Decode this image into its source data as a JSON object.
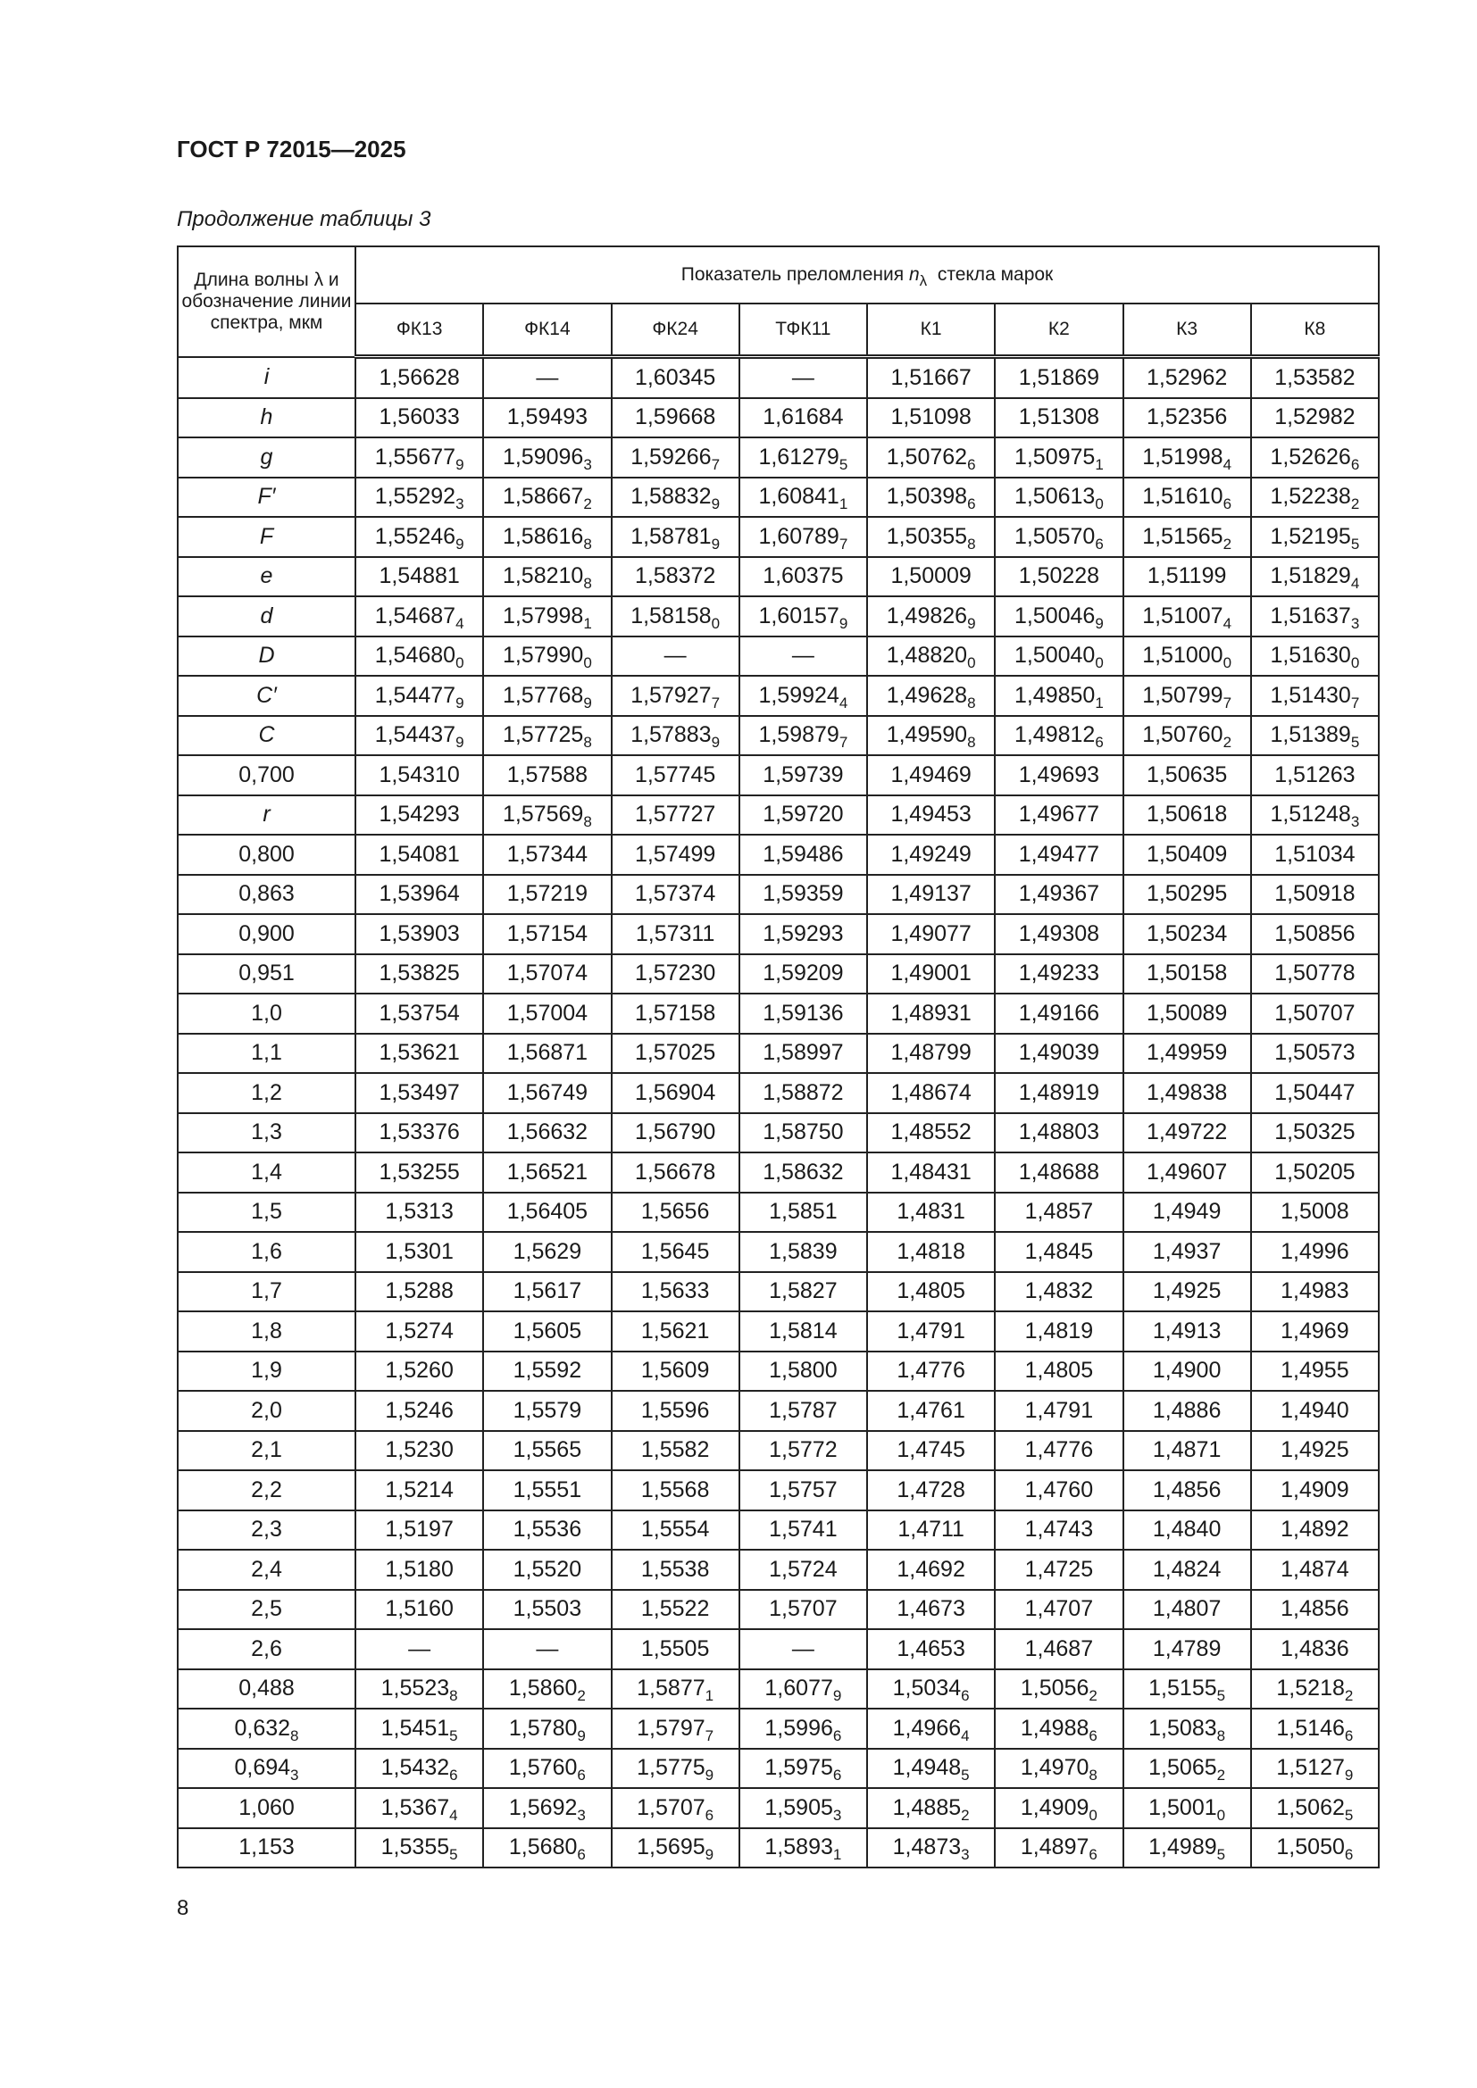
{
  "header": {
    "title": "ГОСТ Р 72015—2025"
  },
  "caption": "Продолжение таблицы 3",
  "table": {
    "first_col_header": "Длина волны λ и обозначение линии спектра, мкм",
    "group_header_prefix": "Показатель преломления ",
    "group_header_symbol": "n",
    "group_header_sub": "λ",
    "group_header_suffix": "  стекла марок",
    "columns": [
      "ФК13",
      "ФК14",
      "ФК24",
      "ТФК11",
      "К1",
      "К2",
      "К3",
      "К8"
    ],
    "rows": [
      {
        "label": "i",
        "italic": true,
        "cells": [
          "1,56628",
          "—",
          "1,60345",
          "—",
          "1,51667",
          "1,51869",
          "1,52962",
          "1,53582"
        ]
      },
      {
        "label": "h",
        "italic": true,
        "cells": [
          "1,56033",
          "1,59493",
          "1,59668",
          "1,61684",
          "1,51098",
          "1,51308",
          "1,52356",
          "1,52982"
        ]
      },
      {
        "label": "g",
        "italic": true,
        "cells": [
          [
            "1,55677",
            "9"
          ],
          [
            "1,59096",
            "3"
          ],
          [
            "1,59266",
            "7"
          ],
          [
            "1,61279",
            "5"
          ],
          [
            "1,50762",
            "6"
          ],
          [
            "1,50975",
            "1"
          ],
          [
            "1,51998",
            "4"
          ],
          [
            "1,52626",
            "6"
          ]
        ]
      },
      {
        "label": "F′",
        "italic": true,
        "cells": [
          [
            "1,55292",
            "3"
          ],
          [
            "1,58667",
            "2"
          ],
          [
            "1,58832",
            "9"
          ],
          [
            "1,60841",
            "1"
          ],
          [
            "1,50398",
            "6"
          ],
          [
            "1,50613",
            "0"
          ],
          [
            "1,51610",
            "6"
          ],
          [
            "1,52238",
            "2"
          ]
        ]
      },
      {
        "label": "F",
        "italic": true,
        "cells": [
          [
            "1,55246",
            "9"
          ],
          [
            "1,58616",
            "8"
          ],
          [
            "1,58781",
            "9"
          ],
          [
            "1,60789",
            "7"
          ],
          [
            "1,50355",
            "8"
          ],
          [
            "1,50570",
            "6"
          ],
          [
            "1,51565",
            "2"
          ],
          [
            "1,52195",
            "5"
          ]
        ]
      },
      {
        "label": "e",
        "italic": true,
        "cells": [
          "1,54881",
          [
            "1,58210",
            "8"
          ],
          "1,58372",
          "1,60375",
          "1,50009",
          "1,50228",
          "1,51199",
          [
            "1,51829",
            "4"
          ]
        ]
      },
      {
        "label": "d",
        "italic": true,
        "cells": [
          [
            "1,54687",
            "4"
          ],
          [
            "1,57998",
            "1"
          ],
          [
            "1,58158",
            "0"
          ],
          [
            "1,60157",
            "9"
          ],
          [
            "1,49826",
            "9"
          ],
          [
            "1,50046",
            "9"
          ],
          [
            "1,51007",
            "4"
          ],
          [
            "1,51637",
            "3"
          ]
        ]
      },
      {
        "label": "D",
        "italic": true,
        "cells": [
          [
            "1,54680",
            "0"
          ],
          [
            "1,57990",
            "0"
          ],
          "—",
          "—",
          [
            "1,48820",
            "0"
          ],
          [
            "1,50040",
            "0"
          ],
          [
            "1,51000",
            "0"
          ],
          [
            "1,51630",
            "0"
          ]
        ]
      },
      {
        "label": "C′",
        "italic": true,
        "cells": [
          [
            "1,54477",
            "9"
          ],
          [
            "1,57768",
            "9"
          ],
          [
            "1,57927",
            "7"
          ],
          [
            "1,59924",
            "4"
          ],
          [
            "1,49628",
            "8"
          ],
          [
            "1,49850",
            "1"
          ],
          [
            "1,50799",
            "7"
          ],
          [
            "1,51430",
            "7"
          ]
        ]
      },
      {
        "label": "C",
        "italic": true,
        "cells": [
          [
            "1,54437",
            "9"
          ],
          [
            "1,57725",
            "8"
          ],
          [
            "1,57883",
            "9"
          ],
          [
            "1,59879",
            "7"
          ],
          [
            "1,49590",
            "8"
          ],
          [
            "1,49812",
            "6"
          ],
          [
            "1,50760",
            "2"
          ],
          [
            "1,51389",
            "5"
          ]
        ]
      },
      {
        "label": "0,700",
        "cells": [
          "1,54310",
          "1,57588",
          "1,57745",
          "1,59739",
          "1,49469",
          "1,49693",
          "1,50635",
          "1,51263"
        ]
      },
      {
        "label": "r",
        "italic": true,
        "cells": [
          "1,54293",
          [
            "1,57569",
            "8"
          ],
          "1,57727",
          "1,59720",
          "1,49453",
          "1,49677",
          "1,50618",
          [
            "1,51248",
            "3"
          ]
        ]
      },
      {
        "label": "0,800",
        "cells": [
          "1,54081",
          "1,57344",
          "1,57499",
          "1,59486",
          "1,49249",
          "1,49477",
          "1,50409",
          "1,51034"
        ]
      },
      {
        "label": "0,863",
        "cells": [
          "1,53964",
          "1,57219",
          "1,57374",
          "1,59359",
          "1,49137",
          "1,49367",
          "1,50295",
          "1,50918"
        ]
      },
      {
        "label": "0,900",
        "cells": [
          "1,53903",
          "1,57154",
          "1,57311",
          "1,59293",
          "1,49077",
          "1,49308",
          "1,50234",
          "1,50856"
        ]
      },
      {
        "label": "0,951",
        "cells": [
          "1,53825",
          "1,57074",
          "1,57230",
          "1,59209",
          "1,49001",
          "1,49233",
          "1,50158",
          "1,50778"
        ]
      },
      {
        "label": "1,0",
        "cells": [
          "1,53754",
          "1,57004",
          "1,57158",
          "1,59136",
          "1,48931",
          "1,49166",
          "1,50089",
          "1,50707"
        ]
      },
      {
        "label": "1,1",
        "cells": [
          "1,53621",
          "1,56871",
          "1,57025",
          "1,58997",
          "1,48799",
          "1,49039",
          "1,49959",
          "1,50573"
        ]
      },
      {
        "label": "1,2",
        "cells": [
          "1,53497",
          "1,56749",
          "1,56904",
          "1,58872",
          "1,48674",
          "1,48919",
          "1,49838",
          "1,50447"
        ]
      },
      {
        "label": "1,3",
        "cells": [
          "1,53376",
          "1,56632",
          "1,56790",
          "1,58750",
          "1,48552",
          "1,48803",
          "1,49722",
          "1,50325"
        ]
      },
      {
        "label": "1,4",
        "cells": [
          "1,53255",
          "1,56521",
          "1,56678",
          "1,58632",
          "1,48431",
          "1,48688",
          "1,49607",
          "1,50205"
        ]
      },
      {
        "label": "1,5",
        "cells": [
          "1,5313",
          "1,56405",
          "1,5656",
          "1,5851",
          "1,4831",
          "1,4857",
          "1,4949",
          "1,5008"
        ]
      },
      {
        "label": "1,6",
        "cells": [
          "1,5301",
          "1,5629",
          "1,5645",
          "1,5839",
          "1,4818",
          "1,4845",
          "1,4937",
          "1,4996"
        ]
      },
      {
        "label": "1,7",
        "cells": [
          "1,5288",
          "1,5617",
          "1,5633",
          "1,5827",
          "1,4805",
          "1,4832",
          "1,4925",
          "1,4983"
        ]
      },
      {
        "label": "1,8",
        "cells": [
          "1,5274",
          "1,5605",
          "1,5621",
          "1,5814",
          "1,4791",
          "1,4819",
          "1,4913",
          "1,4969"
        ]
      },
      {
        "label": "1,9",
        "cells": [
          "1,5260",
          "1,5592",
          "1,5609",
          "1,5800",
          "1,4776",
          "1,4805",
          "1,4900",
          "1,4955"
        ]
      },
      {
        "label": "2,0",
        "cells": [
          "1,5246",
          "1,5579",
          "1,5596",
          "1,5787",
          "1,4761",
          "1,4791",
          "1,4886",
          "1,4940"
        ]
      },
      {
        "label": "2,1",
        "cells": [
          "1,5230",
          "1,5565",
          "1,5582",
          "1,5772",
          "1,4745",
          "1,4776",
          "1,4871",
          "1,4925"
        ]
      },
      {
        "label": "2,2",
        "cells": [
          "1,5214",
          "1,5551",
          "1,5568",
          "1,5757",
          "1,4728",
          "1,4760",
          "1,4856",
          "1,4909"
        ]
      },
      {
        "label": "2,3",
        "cells": [
          "1,5197",
          "1,5536",
          "1,5554",
          "1,5741",
          "1,4711",
          "1,4743",
          "1,4840",
          "1,4892"
        ]
      },
      {
        "label": "2,4",
        "cells": [
          "1,5180",
          "1,5520",
          "1,5538",
          "1,5724",
          "1,4692",
          "1,4725",
          "1,4824",
          "1,4874"
        ]
      },
      {
        "label": "2,5",
        "cells": [
          "1,5160",
          "1,5503",
          "1,5522",
          "1,5707",
          "1,4673",
          "1,4707",
          "1,4807",
          "1,4856"
        ]
      },
      {
        "label": "2,6",
        "cells": [
          "—",
          "—",
          "1,5505",
          "—",
          "1,4653",
          "1,4687",
          "1,4789",
          "1,4836"
        ]
      },
      {
        "label": "0,488",
        "cells": [
          [
            "1,5523",
            "8"
          ],
          [
            "1,5860",
            "2"
          ],
          [
            "1,5877",
            "1"
          ],
          [
            "1,6077",
            "9"
          ],
          [
            "1,5034",
            "6"
          ],
          [
            "1,5056",
            "2"
          ],
          [
            "1,5155",
            "5"
          ],
          [
            "1,5218",
            "2"
          ]
        ]
      },
      {
        "label": [
          "0,632",
          "8"
        ],
        "cells": [
          [
            "1,5451",
            "5"
          ],
          [
            "1,5780",
            "9"
          ],
          [
            "1,5797",
            "7"
          ],
          [
            "1,5996",
            "6"
          ],
          [
            "1,4966",
            "4"
          ],
          [
            "1,4988",
            "6"
          ],
          [
            "1,5083",
            "8"
          ],
          [
            "1,5146",
            "6"
          ]
        ]
      },
      {
        "label": [
          "0,694",
          "3"
        ],
        "cells": [
          [
            "1,5432",
            "6"
          ],
          [
            "1,5760",
            "6"
          ],
          [
            "1,5775",
            "9"
          ],
          [
            "1,5975",
            "6"
          ],
          [
            "1,4948",
            "5"
          ],
          [
            "1,4970",
            "8"
          ],
          [
            "1,5065",
            "2"
          ],
          [
            "1,5127",
            "9"
          ]
        ]
      },
      {
        "label": "1,060",
        "cells": [
          [
            "1,5367",
            "4"
          ],
          [
            "1,5692",
            "3"
          ],
          [
            "1,5707",
            "6"
          ],
          [
            "1,5905",
            "3"
          ],
          [
            "1,4885",
            "2"
          ],
          [
            "1,4909",
            "0"
          ],
          [
            "1,5001",
            "0"
          ],
          [
            "1,5062",
            "5"
          ]
        ]
      },
      {
        "label": "1,153",
        "cells": [
          [
            "1,5355",
            "5"
          ],
          [
            "1,5680",
            "6"
          ],
          [
            "1,5695",
            "9"
          ],
          [
            "1,5893",
            "1"
          ],
          [
            "1,4873",
            "3"
          ],
          [
            "1,4897",
            "6"
          ],
          [
            "1,4989",
            "5"
          ],
          [
            "1,5050",
            "6"
          ]
        ]
      }
    ]
  },
  "footer": {
    "page_number": "8"
  }
}
